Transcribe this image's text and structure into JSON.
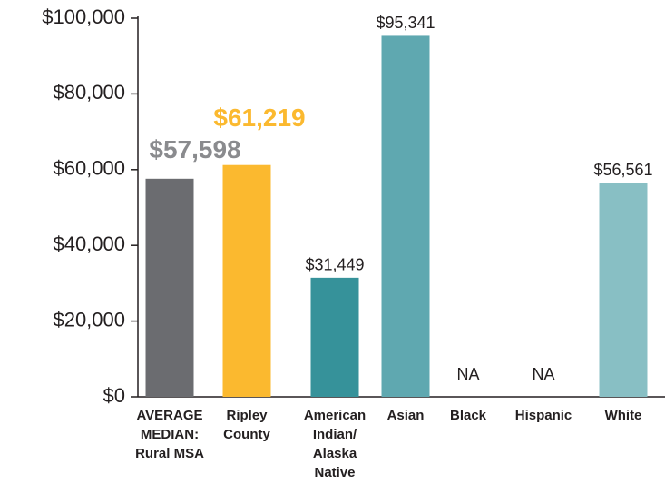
{
  "chart_data": {
    "type": "bar",
    "categories": [
      [
        "AVERAGE",
        "MEDIAN:",
        "Rural MSA"
      ],
      [
        "Ripley",
        "County"
      ],
      [
        "American",
        "Indian/",
        "Alaska",
        "Native"
      ],
      [
        "Asian"
      ],
      [
        "Black"
      ],
      [
        "Hispanic"
      ],
      [
        "White"
      ]
    ],
    "values": [
      57598,
      61219,
      31449,
      95341,
      null,
      null,
      56561
    ],
    "value_labels": [
      "$57,598",
      "$61,219",
      "$31,449",
      "$95,341",
      "NA",
      "NA",
      "$56,561"
    ],
    "colors": [
      "#6b6c70",
      "#fbb92f",
      "#36929a",
      "#5fa8b0",
      null,
      null,
      "#88bfc4"
    ],
    "value_label_colors": [
      "#8a8b8e",
      "#fbb92f",
      "#231f20",
      "#231f20",
      "#231f20",
      "#231f20",
      "#231f20"
    ],
    "ylim": [
      0,
      100000
    ],
    "yticks": [
      {
        "value": 0,
        "label": "$0"
      },
      {
        "value": 20000,
        "label": "$20,000"
      },
      {
        "value": 40000,
        "label": "$40,000"
      },
      {
        "value": 60000,
        "label": "$60,000"
      },
      {
        "value": 80000,
        "label": "$80,000"
      },
      {
        "value": 100000,
        "label": "$100,000"
      }
    ],
    "grid": false
  }
}
